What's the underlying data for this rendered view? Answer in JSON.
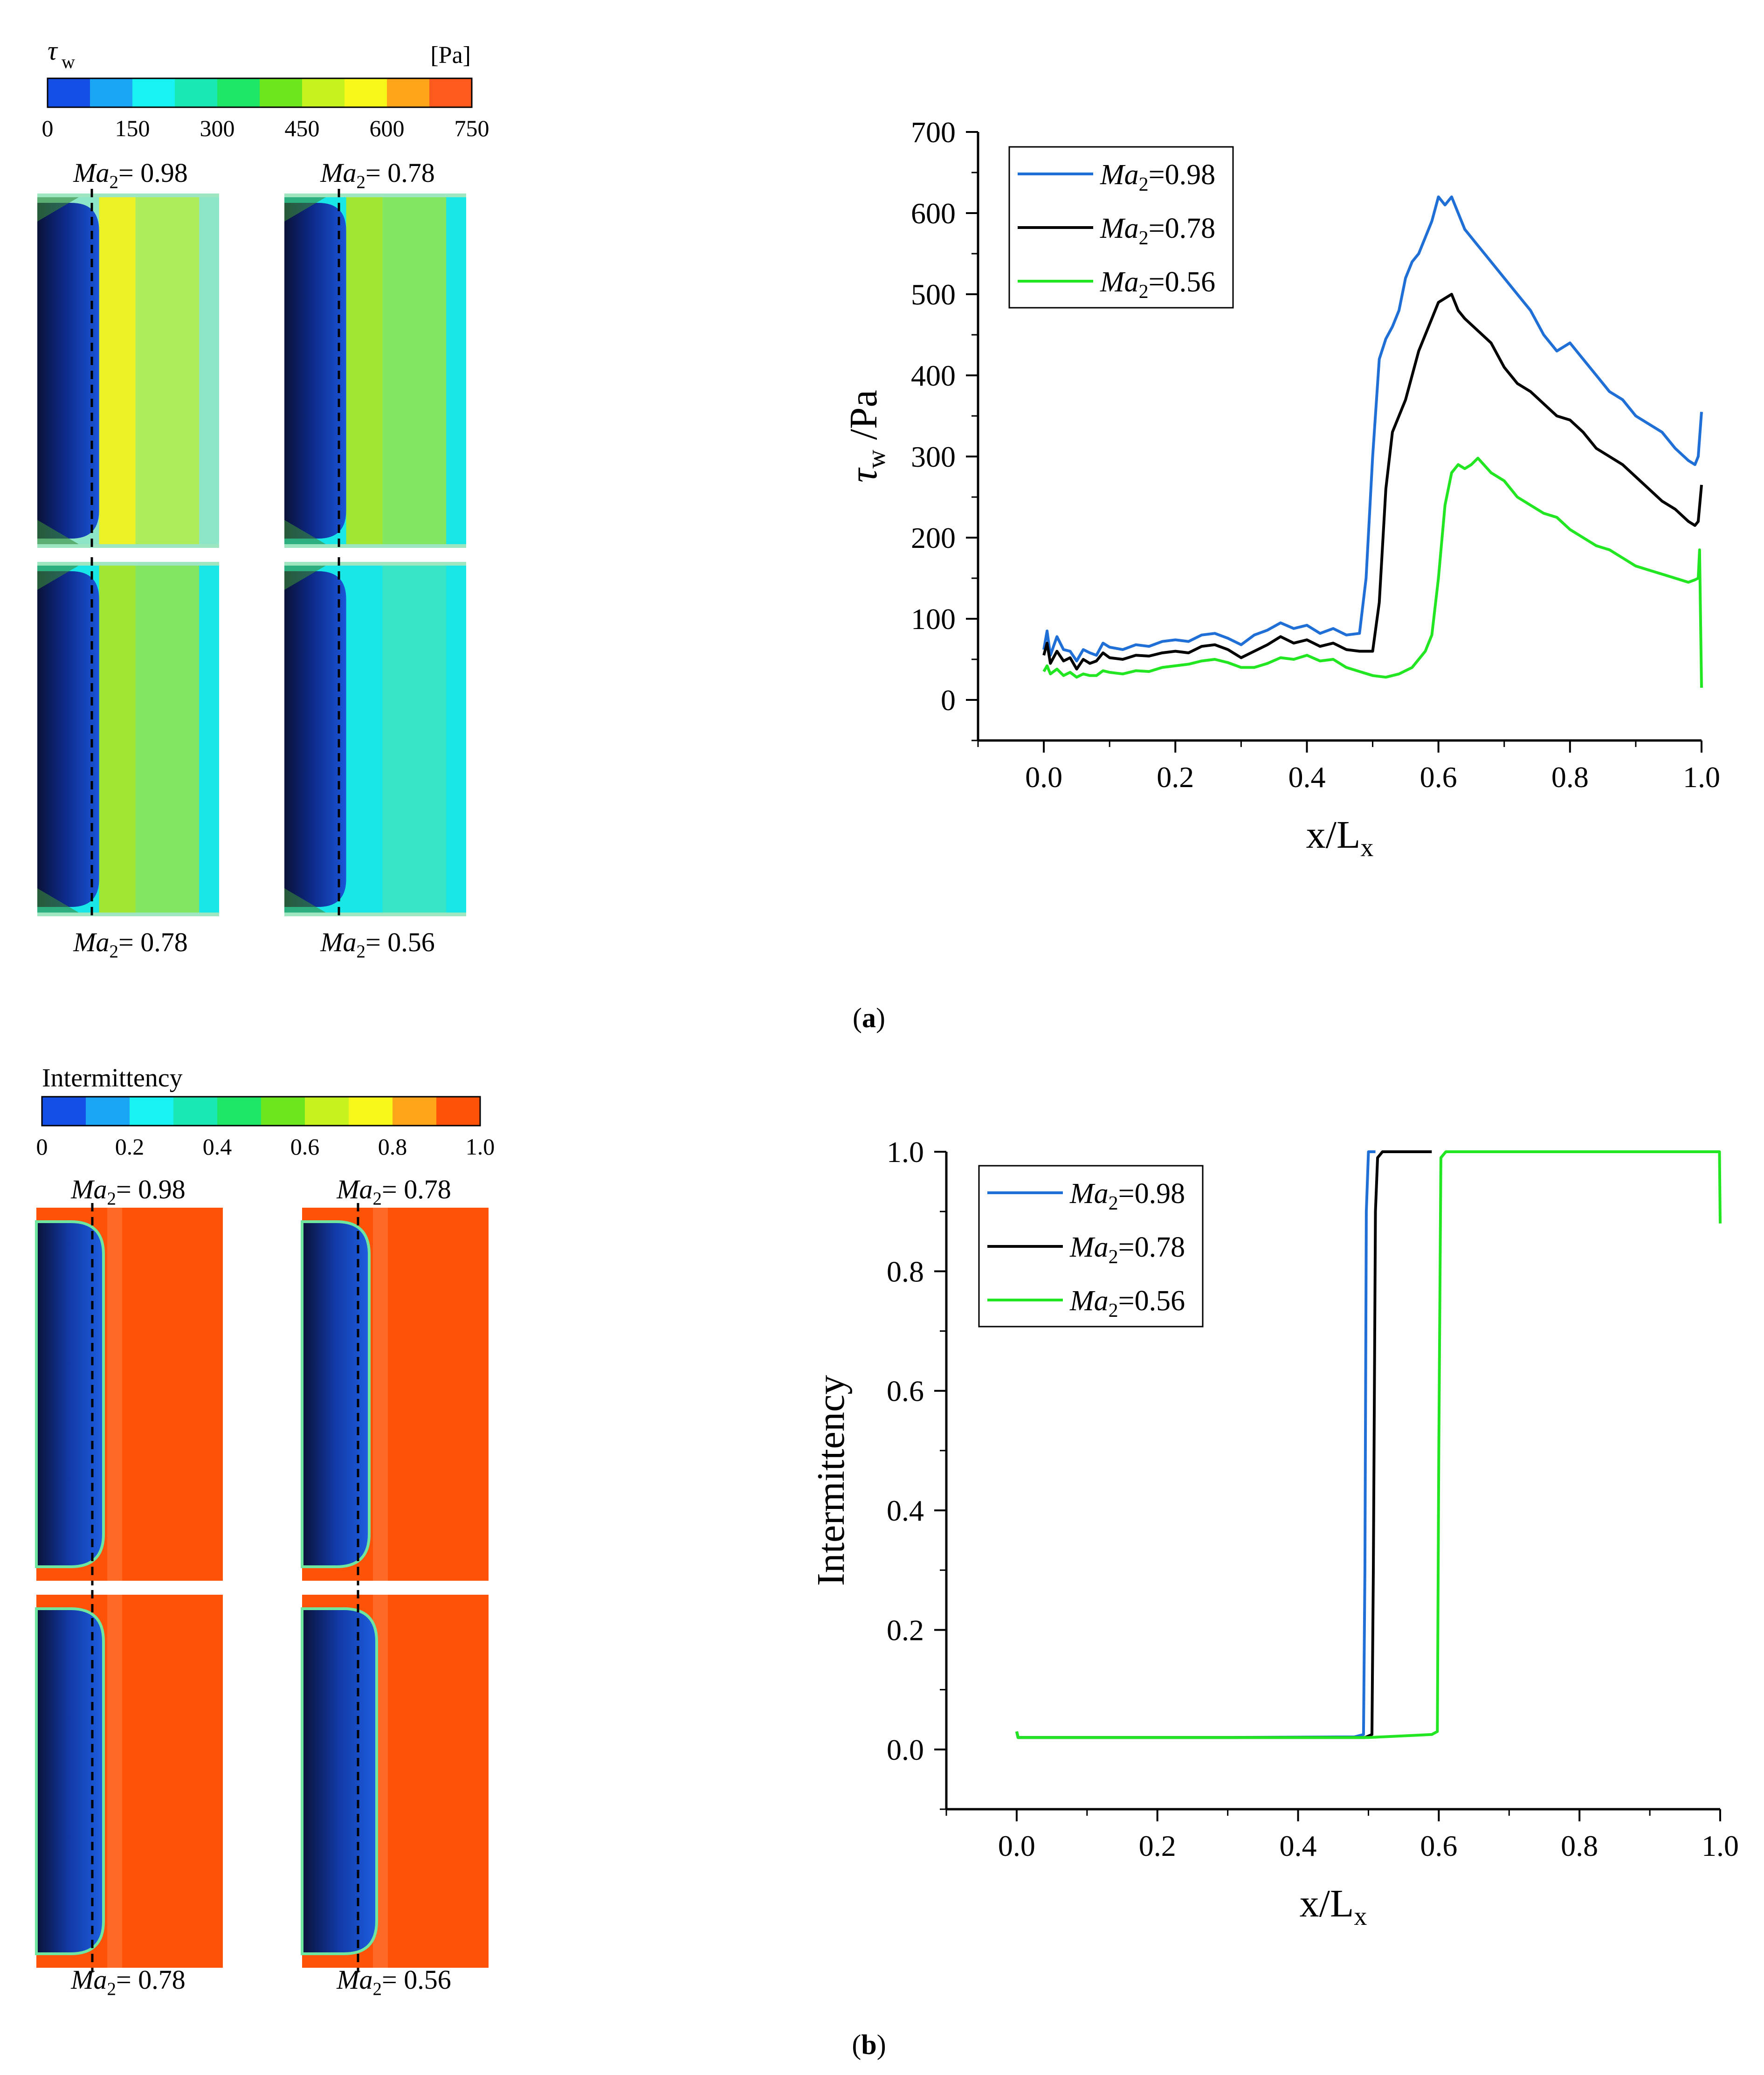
{
  "colors": {
    "blue_series": "#1f6fd6",
    "black_series": "#000000",
    "green_series": "#22e622",
    "contour_dark_blue": "#0a1f6a",
    "contour_blue": "#1e5fe0",
    "contour_cyan": "#19f2f2",
    "contour_yellow": "#f2f21e",
    "contour_orange": "#ff5209"
  },
  "panel_a": {
    "label_open": "(",
    "label_letter": "a",
    "label_close": ")",
    "colorbar": {
      "symbol": "τ",
      "symbol_sub": "w",
      "unit": "[Pa]",
      "ticks": [
        "0",
        "150",
        "300",
        "450",
        "600",
        "750"
      ],
      "colors": [
        "#1550e6",
        "#1aa5f5",
        "#19f2f2",
        "#1ae8b4",
        "#1ee666",
        "#6ee61e",
        "#c6f21e",
        "#f7f71a",
        "#ffa51a",
        "#ff5a1e"
      ]
    },
    "contours": [
      {
        "label_ma": "Ma",
        "label_sub": "2",
        "label_val": "= 0.98",
        "transition": 0.34,
        "downstream": "#f2f21e",
        "far": "#8ee6c8"
      },
      {
        "label_ma": "Ma",
        "label_sub": "2",
        "label_val": "= 0.78",
        "transition": 0.34,
        "downstream": "#a8e628",
        "far": "#19e6e6"
      },
      {
        "label_ma": "Ma",
        "label_sub": "2",
        "label_val": "= 0.78",
        "transition": 0.34,
        "downstream": "#a8e628",
        "far": "#19e6e6"
      },
      {
        "label_ma": "Ma",
        "label_sub": "2",
        "label_val": "= 0.56",
        "transition": 0.34,
        "downstream": "#19e6e6",
        "far": "#19e6e6"
      }
    ],
    "chart_data": {
      "type": "line",
      "title": "",
      "xlabel": "x/L",
      "xlabel_sub": "x",
      "ylabel": "τ",
      "ylabel_sub": "w",
      "ylabel_unit": " /Pa",
      "xlim": [
        -0.1,
        1.0
      ],
      "ylim": [
        -50,
        700
      ],
      "xticks": [
        0.0,
        0.2,
        0.4,
        0.6,
        0.8,
        1.0
      ],
      "xtick_labels": [
        "0.0",
        "0.2",
        "0.4",
        "0.6",
        "0.8",
        "1.0"
      ],
      "yticks": [
        0,
        100,
        200,
        300,
        400,
        500,
        600,
        700
      ],
      "ytick_labels": [
        "0",
        "100",
        "200",
        "300",
        "400",
        "500",
        "600",
        "700"
      ],
      "legend_position": "top-left",
      "series": [
        {
          "name_ma": "Ma",
          "name_sub": "2",
          "name_val": "=0.98",
          "color": "#1f6fd6",
          "x": [
            0.0,
            0.005,
            0.01,
            0.02,
            0.03,
            0.04,
            0.05,
            0.06,
            0.07,
            0.08,
            0.09,
            0.1,
            0.12,
            0.14,
            0.16,
            0.18,
            0.2,
            0.22,
            0.24,
            0.26,
            0.28,
            0.3,
            0.32,
            0.34,
            0.36,
            0.38,
            0.4,
            0.42,
            0.44,
            0.46,
            0.48,
            0.49,
            0.5,
            0.51,
            0.52,
            0.53,
            0.54,
            0.55,
            0.56,
            0.57,
            0.58,
            0.59,
            0.6,
            0.61,
            0.62,
            0.63,
            0.64,
            0.66,
            0.68,
            0.7,
            0.72,
            0.74,
            0.76,
            0.78,
            0.8,
            0.82,
            0.84,
            0.86,
            0.88,
            0.9,
            0.92,
            0.94,
            0.96,
            0.98,
            0.99,
            0.995,
            1.0
          ],
          "y": [
            62,
            85,
            55,
            78,
            62,
            60,
            48,
            62,
            58,
            55,
            70,
            65,
            62,
            68,
            66,
            72,
            74,
            72,
            80,
            82,
            76,
            68,
            80,
            86,
            95,
            88,
            92,
            82,
            88,
            80,
            82,
            150,
            300,
            420,
            445,
            460,
            480,
            520,
            540,
            550,
            570,
            590,
            620,
            610,
            620,
            600,
            580,
            560,
            540,
            520,
            500,
            480,
            450,
            430,
            440,
            420,
            400,
            380,
            370,
            350,
            340,
            330,
            310,
            295,
            290,
            300,
            355
          ]
        },
        {
          "name_ma": "Ma",
          "name_sub": "2",
          "name_val": "=0.78",
          "color": "#000000",
          "x": [
            0.0,
            0.005,
            0.01,
            0.02,
            0.03,
            0.04,
            0.05,
            0.06,
            0.07,
            0.08,
            0.09,
            0.1,
            0.12,
            0.14,
            0.16,
            0.18,
            0.2,
            0.22,
            0.24,
            0.26,
            0.28,
            0.3,
            0.32,
            0.34,
            0.36,
            0.38,
            0.4,
            0.42,
            0.44,
            0.46,
            0.48,
            0.5,
            0.51,
            0.52,
            0.53,
            0.54,
            0.55,
            0.56,
            0.57,
            0.58,
            0.59,
            0.6,
            0.61,
            0.62,
            0.63,
            0.64,
            0.66,
            0.68,
            0.7,
            0.72,
            0.74,
            0.76,
            0.78,
            0.8,
            0.82,
            0.84,
            0.86,
            0.88,
            0.9,
            0.92,
            0.94,
            0.96,
            0.98,
            0.99,
            0.995,
            1.0
          ],
          "y": [
            55,
            70,
            45,
            60,
            48,
            52,
            38,
            50,
            45,
            48,
            58,
            52,
            50,
            55,
            54,
            58,
            60,
            58,
            66,
            68,
            62,
            52,
            60,
            68,
            78,
            70,
            74,
            66,
            70,
            62,
            60,
            60,
            120,
            260,
            330,
            350,
            370,
            400,
            430,
            450,
            470,
            490,
            495,
            500,
            480,
            470,
            455,
            440,
            410,
            390,
            380,
            365,
            350,
            345,
            330,
            310,
            300,
            290,
            275,
            260,
            245,
            235,
            220,
            215,
            220,
            265
          ]
        },
        {
          "name_ma": "Ma",
          "name_sub": "2",
          "name_val": "=0.56",
          "color": "#22e622",
          "x": [
            0.0,
            0.005,
            0.01,
            0.02,
            0.03,
            0.04,
            0.05,
            0.06,
            0.07,
            0.08,
            0.09,
            0.1,
            0.12,
            0.14,
            0.16,
            0.18,
            0.2,
            0.22,
            0.24,
            0.26,
            0.28,
            0.3,
            0.32,
            0.34,
            0.36,
            0.38,
            0.4,
            0.42,
            0.44,
            0.46,
            0.48,
            0.5,
            0.52,
            0.54,
            0.56,
            0.57,
            0.58,
            0.59,
            0.6,
            0.61,
            0.62,
            0.63,
            0.64,
            0.65,
            0.66,
            0.68,
            0.7,
            0.72,
            0.74,
            0.76,
            0.78,
            0.8,
            0.82,
            0.84,
            0.86,
            0.88,
            0.9,
            0.92,
            0.94,
            0.96,
            0.98,
            0.99,
            0.995,
            0.997,
            1.0
          ],
          "y": [
            35,
            42,
            32,
            38,
            30,
            34,
            28,
            32,
            30,
            30,
            36,
            34,
            32,
            36,
            35,
            40,
            42,
            44,
            48,
            50,
            46,
            40,
            40,
            45,
            52,
            50,
            55,
            48,
            50,
            40,
            35,
            30,
            28,
            32,
            40,
            50,
            60,
            80,
            150,
            240,
            280,
            290,
            285,
            290,
            298,
            280,
            270,
            250,
            240,
            230,
            225,
            210,
            200,
            190,
            185,
            175,
            165,
            160,
            155,
            150,
            145,
            148,
            150,
            185,
            15
          ]
        }
      ]
    }
  },
  "panel_b": {
    "label_open": "(",
    "label_letter": "b",
    "label_close": ")",
    "colorbar": {
      "title": "Intermittency",
      "ticks": [
        "0",
        "0.2",
        "0.4",
        "0.6",
        "0.8",
        "1.0"
      ],
      "colors": [
        "#1550e6",
        "#1aa5f5",
        "#19f2f2",
        "#1ae8b4",
        "#1ee666",
        "#6ee61e",
        "#c6f21e",
        "#f7f71a",
        "#ffa51a",
        "#ff5209"
      ]
    },
    "contours": [
      {
        "label_ma": "Ma",
        "label_sub": "2",
        "label_val": "= 0.98",
        "transition": 0.36
      },
      {
        "label_ma": "Ma",
        "label_sub": "2",
        "label_val": "= 0.78",
        "transition": 0.36
      },
      {
        "label_ma": "Ma",
        "label_sub": "2",
        "label_val": "= 0.78",
        "transition": 0.36
      },
      {
        "label_ma": "Ma",
        "label_sub": "2",
        "label_val": "= 0.56",
        "transition": 0.4
      }
    ],
    "chart_data": {
      "type": "line",
      "title": "",
      "xlabel": "x/L",
      "xlabel_sub": "x",
      "ylabel": "Intermittency",
      "xlim": [
        -0.1,
        1.0
      ],
      "ylim": [
        -0.1,
        1.0
      ],
      "xticks": [
        0.0,
        0.2,
        0.4,
        0.6,
        0.8,
        1.0
      ],
      "xtick_labels": [
        "0.0",
        "0.2",
        "0.4",
        "0.6",
        "0.8",
        "1.0"
      ],
      "yticks": [
        0.0,
        0.2,
        0.4,
        0.6,
        0.8,
        1.0
      ],
      "ytick_labels": [
        "0.0",
        "0.2",
        "0.4",
        "0.6",
        "0.8",
        "1.0"
      ],
      "legend_position": "top-left",
      "series": [
        {
          "name_ma": "Ma",
          "name_sub": "2",
          "name_val": "=0.98",
          "color": "#1f6fd6",
          "x": [
            0.0,
            0.002,
            0.1,
            0.3,
            0.48,
            0.493,
            0.495,
            0.497,
            0.5,
            0.51
          ],
          "y": [
            0.03,
            0.02,
            0.02,
            0.02,
            0.021,
            0.025,
            0.3,
            0.9,
            1.0,
            1.0
          ]
        },
        {
          "name_ma": "Ma",
          "name_sub": "2",
          "name_val": "=0.78",
          "color": "#000000",
          "x": [
            0.0,
            0.002,
            0.1,
            0.3,
            0.495,
            0.505,
            0.507,
            0.51,
            0.513,
            0.52,
            0.59
          ],
          "y": [
            0.03,
            0.02,
            0.02,
            0.02,
            0.02,
            0.025,
            0.3,
            0.9,
            0.99,
            1.0,
            1.0
          ]
        },
        {
          "name_ma": "Ma",
          "name_sub": "2",
          "name_val": "=0.56",
          "color": "#22e622",
          "x": [
            0.0,
            0.002,
            0.1,
            0.3,
            0.5,
            0.59,
            0.598,
            0.6,
            0.603,
            0.61,
            0.8,
            0.999,
            1.0
          ],
          "y": [
            0.03,
            0.02,
            0.02,
            0.02,
            0.02,
            0.025,
            0.03,
            0.5,
            0.99,
            1.0,
            1.0,
            1.0,
            0.88
          ]
        }
      ]
    }
  }
}
